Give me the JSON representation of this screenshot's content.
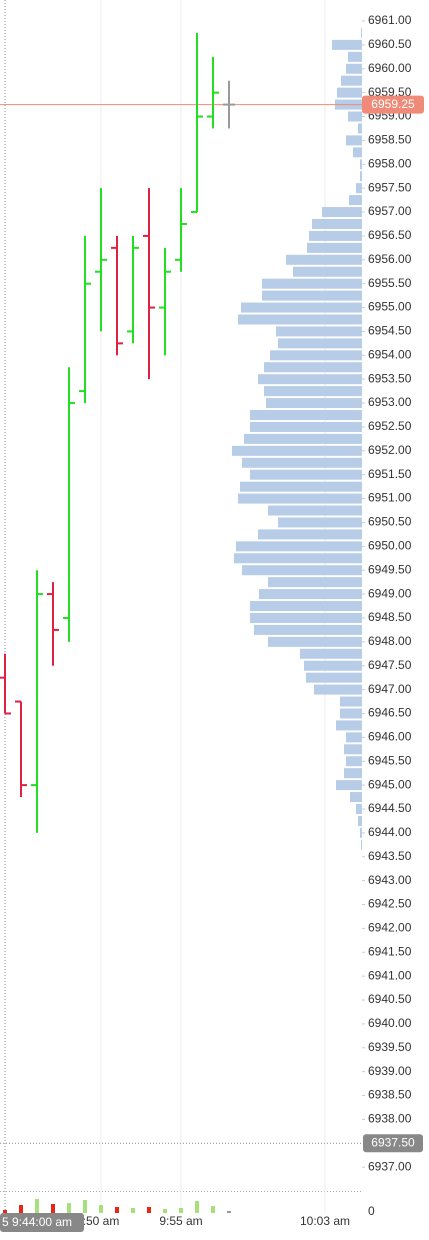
{
  "chart_data": {
    "type": "ohlc",
    "up_color": "#22dd22",
    "down_color": "#dd2244",
    "flat_color": "#999999",
    "open": [
      6947.25,
      6946.75,
      6945.0,
      6949.0,
      6948.5,
      6953.25,
      6955.75,
      6956.25,
      6954.5,
      6956.5,
      6955.0,
      6956.0,
      6957.0,
      6959.0,
      6959.25
    ],
    "high": [
      6947.75,
      6946.75,
      6949.5,
      6949.25,
      6953.75,
      6956.5,
      6957.5,
      6956.5,
      6956.5,
      6957.5,
      6956.25,
      6957.5,
      6960.75,
      6960.25,
      6959.75
    ],
    "low": [
      6946.5,
      6944.75,
      6944.0,
      6947.5,
      6948.0,
      6953.0,
      6954.5,
      6954.0,
      6954.25,
      6953.5,
      6954.0,
      6955.75,
      6957.0,
      6958.75,
      6958.75
    ],
    "close": [
      6946.5,
      6945.0,
      6949.0,
      6948.25,
      6953.0,
      6955.5,
      6956.0,
      6954.25,
      6956.25,
      6955.0,
      6955.75,
      6956.75,
      6959.0,
      6959.5,
      6959.25
    ],
    "volume": [
      3,
      8,
      14,
      9,
      10,
      13,
      8,
      6,
      5,
      6,
      4,
      5,
      12,
      7,
      2
    ],
    "volume_ylim": [
      0,
      20
    ],
    "volume_yticks": [
      0
    ],
    "xlim": [
      -0.3125,
      22.3125
    ],
    "xticks": [
      {
        "value": 6,
        "label": ":50 am"
      },
      {
        "value": 11,
        "label": "9:55 am"
      },
      {
        "value": 20,
        "label": "10:03 am"
      }
    ],
    "ylim": [
      6936.48,
      6961.44
    ],
    "yticks": [
      {
        "value": 6961.0,
        "label": "6961.00"
      },
      {
        "value": 6960.5,
        "label": "6960.50"
      },
      {
        "value": 6960.0,
        "label": "6960.00"
      },
      {
        "value": 6959.5,
        "label": "6959.50"
      },
      {
        "value": 6959.0,
        "label": "6959.00"
      },
      {
        "value": 6958.5,
        "label": "6958.50"
      },
      {
        "value": 6958.0,
        "label": "6958.00"
      },
      {
        "value": 6957.5,
        "label": "6957.50"
      },
      {
        "value": 6957.0,
        "label": "6957.00"
      },
      {
        "value": 6956.5,
        "label": "6956.50"
      },
      {
        "value": 6956.0,
        "label": "6956.00"
      },
      {
        "value": 6955.5,
        "label": "6955.50"
      },
      {
        "value": 6955.0,
        "label": "6955.00"
      },
      {
        "value": 6954.5,
        "label": "6954.50"
      },
      {
        "value": 6954.0,
        "label": "6954.00"
      },
      {
        "value": 6953.5,
        "label": "6953.50"
      },
      {
        "value": 6953.0,
        "label": "6953.00"
      },
      {
        "value": 6952.5,
        "label": "6952.50"
      },
      {
        "value": 6952.0,
        "label": "6952.00"
      },
      {
        "value": 6951.5,
        "label": "6951.50"
      },
      {
        "value": 6951.0,
        "label": "6951.00"
      },
      {
        "value": 6950.5,
        "label": "6950.50"
      },
      {
        "value": 6950.0,
        "label": "6950.00"
      },
      {
        "value": 6949.5,
        "label": "6949.50"
      },
      {
        "value": 6949.0,
        "label": "6949.00"
      },
      {
        "value": 6948.5,
        "label": "6948.50"
      },
      {
        "value": 6948.0,
        "label": "6948.00"
      },
      {
        "value": 6947.5,
        "label": "6947.50"
      },
      {
        "value": 6947.0,
        "label": "6947.00"
      },
      {
        "value": 6946.5,
        "label": "6946.50"
      },
      {
        "value": 6946.0,
        "label": "6946.00"
      },
      {
        "value": 6945.5,
        "label": "6945.50"
      },
      {
        "value": 6945.0,
        "label": "6945.00"
      },
      {
        "value": 6944.5,
        "label": "6944.50"
      },
      {
        "value": 6944.0,
        "label": "6944.00"
      },
      {
        "value": 6943.5,
        "label": "6943.50"
      },
      {
        "value": 6943.0,
        "label": "6943.00"
      },
      {
        "value": 6942.5,
        "label": "6942.50"
      },
      {
        "value": 6942.0,
        "label": "6942.00"
      },
      {
        "value": 6941.5,
        "label": "6941.50"
      },
      {
        "value": 6941.0,
        "label": "6941.00"
      },
      {
        "value": 6940.5,
        "label": "6940.50"
      },
      {
        "value": 6940.0,
        "label": "6940.00"
      },
      {
        "value": 6939.5,
        "label": "6939.50"
      },
      {
        "value": 6939.0,
        "label": "6939.00"
      },
      {
        "value": 6938.5,
        "label": "6938.50"
      },
      {
        "value": 6938.0,
        "label": "6938.00"
      },
      {
        "value": 6937.0,
        "label": "6937.00"
      }
    ],
    "last_price": {
      "value": 6959.25,
      "label": "6959.25",
      "color": "#ef8a78"
    },
    "crosshair": {
      "price": {
        "value": 6937.5,
        "label": "6937.50"
      },
      "time": {
        "value": 0,
        "label": "5 9:44:00 am"
      },
      "color": "#888888"
    },
    "profile": {
      "color": "#b7cce6",
      "xlim": [
        0,
        362
      ],
      "prices": [
        6960.75,
        6960.5,
        6960.25,
        6960.0,
        6959.75,
        6959.5,
        6959.25,
        6959.0,
        6958.75,
        6958.5,
        6958.25,
        6958.0,
        6957.75,
        6957.5,
        6957.25,
        6957.0,
        6956.75,
        6956.5,
        6956.25,
        6956.0,
        6955.75,
        6955.5,
        6955.25,
        6955.0,
        6954.75,
        6954.5,
        6954.25,
        6954.0,
        6953.75,
        6953.5,
        6953.25,
        6953.0,
        6952.75,
        6952.5,
        6952.25,
        6952.0,
        6951.75,
        6951.5,
        6951.25,
        6951.0,
        6950.75,
        6950.5,
        6950.25,
        6950.0,
        6949.75,
        6949.5,
        6949.25,
        6949.0,
        6948.75,
        6948.5,
        6948.25,
        6948.0,
        6947.75,
        6947.5,
        6947.25,
        6947.0,
        6946.75,
        6946.5,
        6946.25,
        6946.0,
        6945.75,
        6945.5,
        6945.25,
        6945.0,
        6944.75,
        6944.5,
        6944.25,
        6944.0,
        6943.75
      ],
      "values": [
        1,
        30,
        14,
        16,
        21,
        25,
        27,
        14,
        4,
        16,
        9,
        2,
        2,
        6,
        13,
        40,
        50,
        53,
        55,
        76,
        69,
        100,
        100,
        121,
        124,
        86,
        84,
        92,
        98,
        104,
        98,
        96,
        112,
        112,
        118,
        130,
        120,
        112,
        122,
        124,
        94,
        84,
        104,
        126,
        128,
        120,
        94,
        103,
        112,
        112,
        108,
        94,
        62,
        58,
        56,
        48,
        22,
        22,
        26,
        16,
        18,
        16,
        18,
        26,
        12,
        6,
        4,
        2,
        1
      ]
    }
  }
}
